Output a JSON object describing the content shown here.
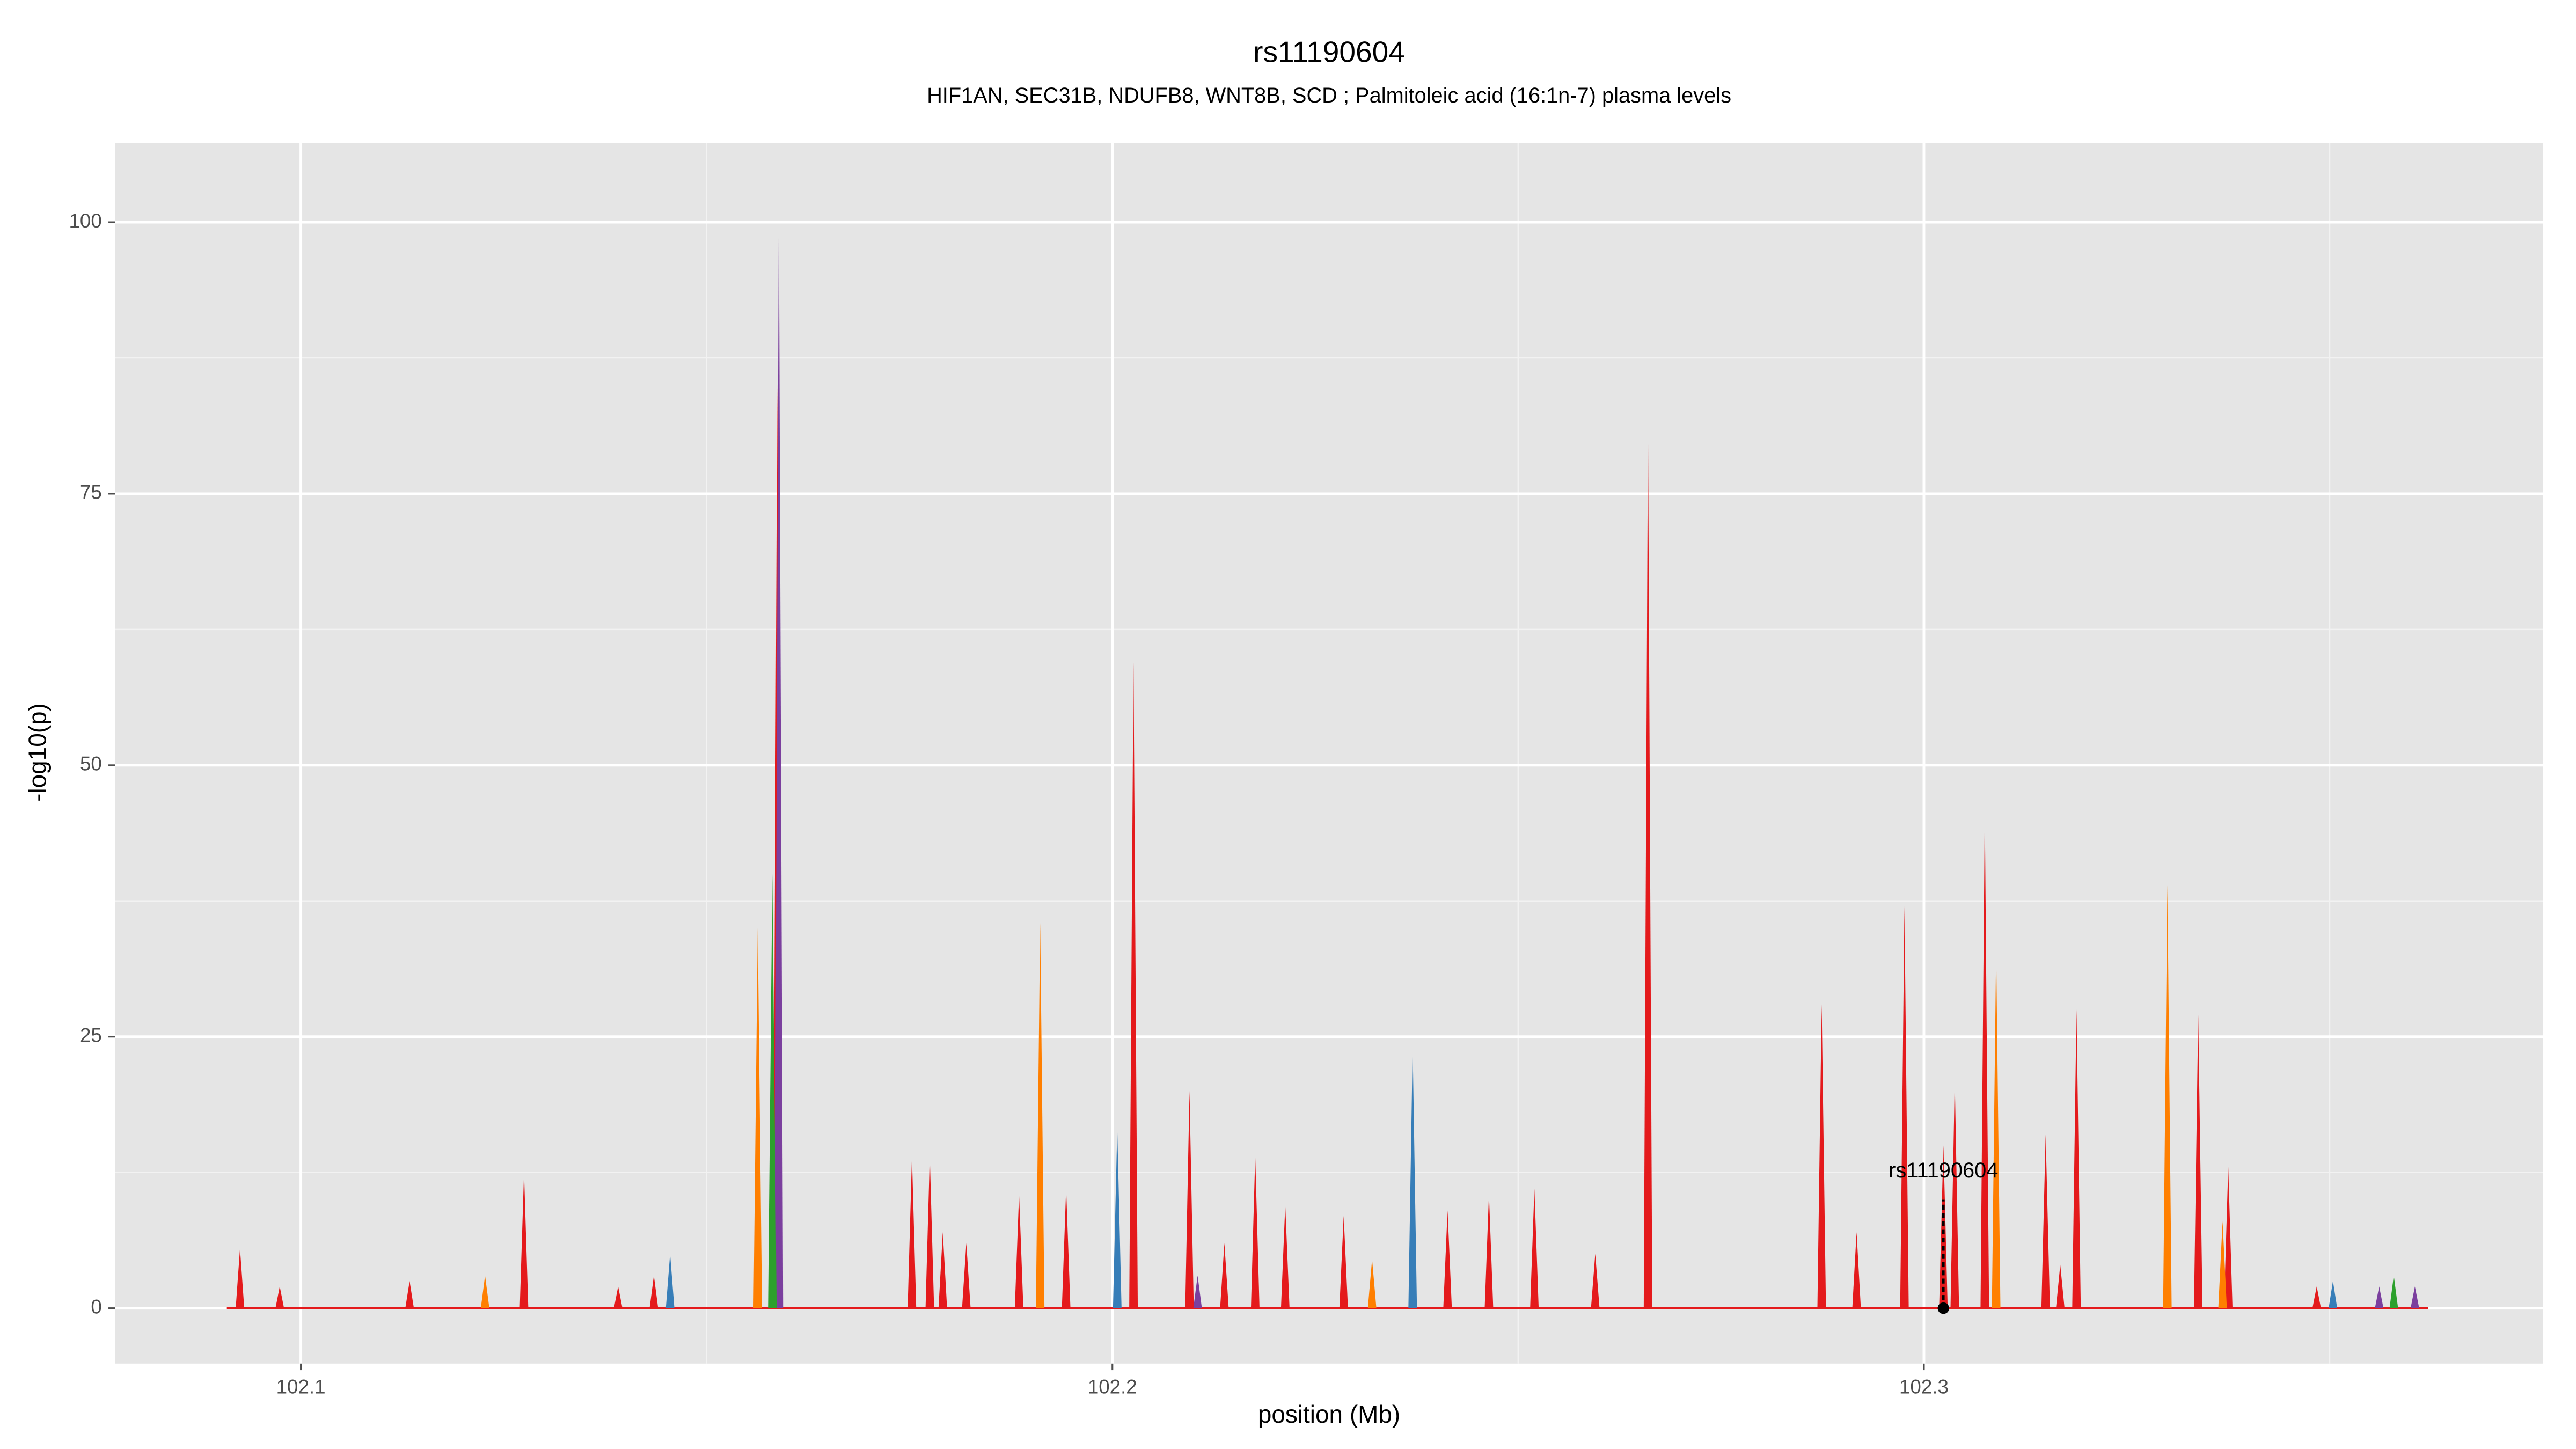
{
  "chart_data": {
    "type": "area",
    "title": "rs11190604",
    "subtitle": "HIF1AN, SEC31B, NDUFB8, WNT8B, SCD  ; Palmitoleic acid (16:1n-7) plasma levels",
    "xlabel": "position (Mb)",
    "ylabel": "-log10(p)",
    "xlim": [
      102.0771,
      102.3763
    ],
    "ylim": [
      -5.1,
      107.3
    ],
    "xticks": [
      102.1,
      102.2,
      102.3
    ],
    "yticks": [
      0,
      25,
      50,
      75,
      100
    ],
    "grid": true,
    "series": [
      {
        "color": "#e41a1c",
        "x": [
          102.0925,
          102.0974,
          102.1134,
          102.1275,
          102.1391,
          102.1435,
          102.1587,
          102.1753,
          102.1775,
          102.1791,
          102.182,
          102.1885,
          102.1943,
          102.2026,
          102.2095,
          102.2138,
          102.2176,
          102.2213,
          102.2285,
          102.2413,
          102.2464,
          102.252,
          102.2595,
          102.266,
          102.2874,
          102.2917,
          102.2976,
          102.3024,
          102.3038,
          102.3075,
          102.315,
          102.3168,
          102.3188,
          102.3338,
          102.3375,
          102.3484
        ],
        "values": [
          5.5,
          2,
          2.5,
          12.5,
          2,
          3,
          85,
          14,
          14,
          7,
          6,
          10.5,
          11,
          59.5,
          20,
          6,
          14,
          9.5,
          8.5,
          9,
          10.5,
          11,
          5,
          81.5,
          28,
          7,
          37,
          15,
          21,
          46,
          16,
          4,
          27.5,
          27,
          13,
          2
        ]
      },
      {
        "color": "#ff7f00",
        "x": [
          102.1227,
          102.1563,
          102.1911,
          102.232,
          102.3089,
          102.33,
          102.3368
        ],
        "values": [
          3,
          35,
          35.5,
          4.5,
          33,
          39,
          8
        ]
      },
      {
        "color": "#377eb8",
        "x": [
          102.1455,
          102.2006,
          102.237,
          102.3504
        ],
        "values": [
          5,
          16.5,
          24,
          2.5
        ]
      },
      {
        "color": "#7b3f9e",
        "x": [
          102.1589,
          102.2105,
          102.3561,
          102.3605
        ],
        "values": [
          102,
          3,
          2,
          2
        ]
      },
      {
        "color": "#2ca02c",
        "x": [
          102.1581,
          102.3579
        ],
        "values": [
          40,
          3
        ]
      }
    ],
    "annotation": {
      "text": "rs11190604",
      "x": 102.3024,
      "y": 0
    }
  }
}
